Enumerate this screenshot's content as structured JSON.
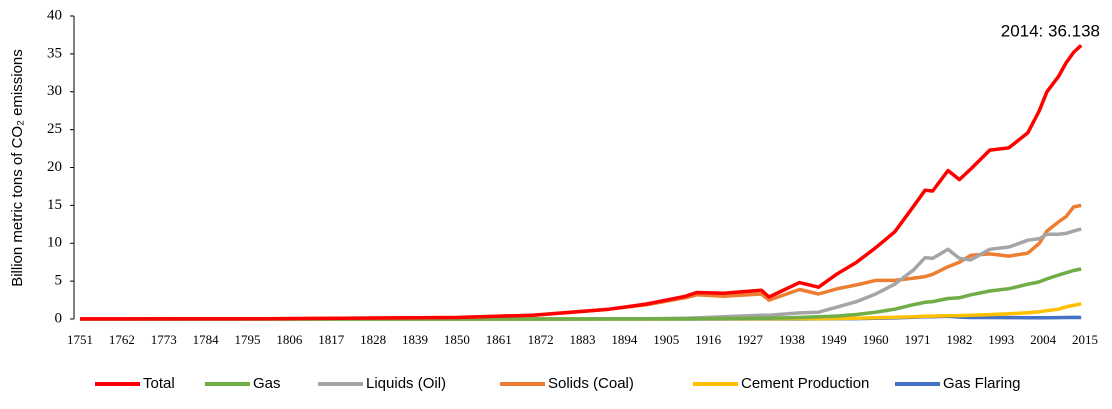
{
  "chart_data": {
    "type": "line",
    "ylabel": "Billion metric tons of CO₂ emissions",
    "annotation": "2014: 36.138",
    "x": [
      1751,
      1800,
      1850,
      1870,
      1890,
      1900,
      1910,
      1913,
      1920,
      1930,
      1932,
      1940,
      1945,
      1950,
      1955,
      1960,
      1965,
      1970,
      1973,
      1975,
      1979,
      1982,
      1985,
      1990,
      1995,
      2000,
      2003,
      2005,
      2008,
      2010,
      2012,
      2014
    ],
    "xlim": [
      1751,
      2015
    ],
    "xticks": [
      1751,
      1762,
      1773,
      1784,
      1795,
      1806,
      1817,
      1828,
      1839,
      1850,
      1861,
      1872,
      1883,
      1894,
      1905,
      1916,
      1927,
      1938,
      1949,
      1960,
      1971,
      1982,
      1993,
      2004,
      2015
    ],
    "ylim": [
      0,
      40
    ],
    "yticks": [
      0,
      5,
      10,
      15,
      20,
      25,
      30,
      35,
      40
    ],
    "legend": "bottom",
    "series": [
      {
        "name": "Total",
        "color": "#ff0000",
        "values": [
          0.01,
          0.03,
          0.2,
          0.5,
          1.3,
          2.0,
          3.0,
          3.5,
          3.4,
          3.8,
          2.9,
          4.8,
          4.2,
          6.0,
          7.5,
          9.4,
          11.5,
          14.9,
          17.0,
          16.9,
          19.6,
          18.4,
          19.8,
          22.3,
          22.6,
          24.6,
          27.5,
          30.0,
          32.0,
          33.8,
          35.2,
          36.138
        ]
      },
      {
        "name": "Gas",
        "color": "#70ad47",
        "values": [
          0,
          0,
          0,
          0,
          0.01,
          0.01,
          0.03,
          0.04,
          0.06,
          0.1,
          0.1,
          0.2,
          0.3,
          0.4,
          0.6,
          0.9,
          1.3,
          1.9,
          2.2,
          2.3,
          2.7,
          2.8,
          3.2,
          3.7,
          4.0,
          4.6,
          4.9,
          5.3,
          5.8,
          6.1,
          6.4,
          6.6
        ]
      },
      {
        "name": "Liquids (Oil)",
        "color": "#a5a5a5",
        "values": [
          0,
          0,
          0,
          0,
          0.01,
          0.02,
          0.1,
          0.15,
          0.3,
          0.5,
          0.5,
          0.8,
          0.9,
          1.6,
          2.3,
          3.3,
          4.6,
          6.5,
          8.1,
          8.0,
          9.2,
          8.0,
          7.8,
          9.2,
          9.5,
          10.4,
          10.6,
          11.2,
          11.2,
          11.3,
          11.6,
          11.9
        ]
      },
      {
        "name": "Solids (Coal)",
        "color": "#ed7d31",
        "values": [
          0.01,
          0.03,
          0.2,
          0.5,
          1.3,
          1.9,
          2.8,
          3.2,
          3.0,
          3.3,
          2.5,
          3.9,
          3.3,
          4.0,
          4.5,
          5.1,
          5.1,
          5.4,
          5.6,
          5.9,
          6.9,
          7.5,
          8.4,
          8.6,
          8.3,
          8.7,
          10.0,
          11.6,
          12.8,
          13.5,
          14.8,
          15.0
        ]
      },
      {
        "name": "Cement Production",
        "color": "#ffc000",
        "values": [
          0,
          0,
          0,
          0,
          0,
          0,
          0.01,
          0.01,
          0.02,
          0.04,
          0.03,
          0.05,
          0.04,
          0.07,
          0.11,
          0.16,
          0.22,
          0.3,
          0.36,
          0.38,
          0.45,
          0.45,
          0.49,
          0.58,
          0.69,
          0.82,
          0.96,
          1.1,
          1.3,
          1.6,
          1.8,
          2.0
        ]
      },
      {
        "name": "Gas Flaring",
        "color": "#4472c4",
        "values": [
          0,
          0,
          0,
          0,
          0,
          0,
          0,
          0,
          0,
          0,
          0,
          0,
          0.01,
          0.02,
          0.05,
          0.1,
          0.15,
          0.23,
          0.29,
          0.3,
          0.35,
          0.25,
          0.2,
          0.2,
          0.18,
          0.17,
          0.17,
          0.17,
          0.18,
          0.2,
          0.21,
          0.2
        ]
      }
    ]
  }
}
